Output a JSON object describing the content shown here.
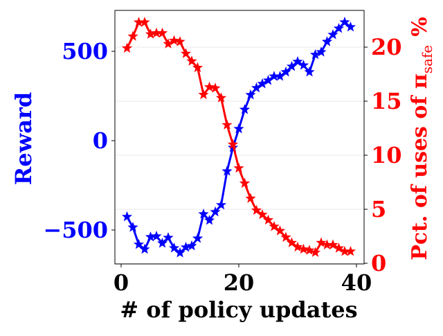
{
  "chart_data": {
    "type": "line",
    "xlabel": "# of policy updates",
    "ylabel": "Reward",
    "y2label": [
      "Pct. of uses of π",
      "safe",
      "%"
    ],
    "x": [
      1,
      2,
      3,
      4,
      5,
      6,
      7,
      8,
      9,
      10,
      11,
      12,
      13,
      14,
      15,
      16,
      17,
      18,
      19,
      20,
      21,
      22,
      23,
      24,
      25,
      26,
      27,
      28,
      29,
      30,
      31,
      32,
      33,
      34,
      35,
      36,
      37,
      38,
      39
    ],
    "series": [
      {
        "name": "Reward",
        "color": "#0000ff",
        "axis": "y",
        "values": [
          -426,
          -485,
          -581,
          -608,
          -539,
          -535,
          -574,
          -543,
          -601,
          -628,
          -597,
          -589,
          -547,
          -411,
          -446,
          -399,
          -360,
          -171,
          -39,
          66,
          174,
          256,
          295,
          318,
          337,
          360,
          360,
          384,
          415,
          442,
          422,
          384,
          481,
          496,
          554,
          593,
          628,
          663,
          636
        ]
      },
      {
        "name": "Pct. of uses",
        "color": "#ff0000",
        "axis": "y2",
        "values": [
          19.9,
          21.0,
          22.3,
          22.3,
          21.2,
          21.3,
          21.3,
          20.3,
          20.6,
          20.5,
          19.4,
          18.7,
          18.1,
          15.6,
          16.3,
          16.2,
          15.3,
          12.8,
          11.0,
          8.8,
          7.4,
          6.0,
          4.9,
          4.5,
          4.0,
          3.4,
          3.0,
          2.4,
          1.9,
          1.5,
          1.3,
          1.2,
          1.0,
          1.9,
          1.7,
          1.7,
          1.4,
          1.1,
          1.1
        ]
      }
    ],
    "xlim": [
      -1.06,
      41.3
    ],
    "xticks": [
      0,
      20,
      40
    ],
    "ylim": [
      -690,
      729
    ],
    "yticks": [
      {
        "value": -500,
        "label": "−500"
      },
      0,
      500
    ],
    "y2lim": [
      -0.06,
      23.4
    ],
    "y2ticks": [
      0,
      5,
      10,
      15,
      20
    ],
    "grid": "y2"
  }
}
